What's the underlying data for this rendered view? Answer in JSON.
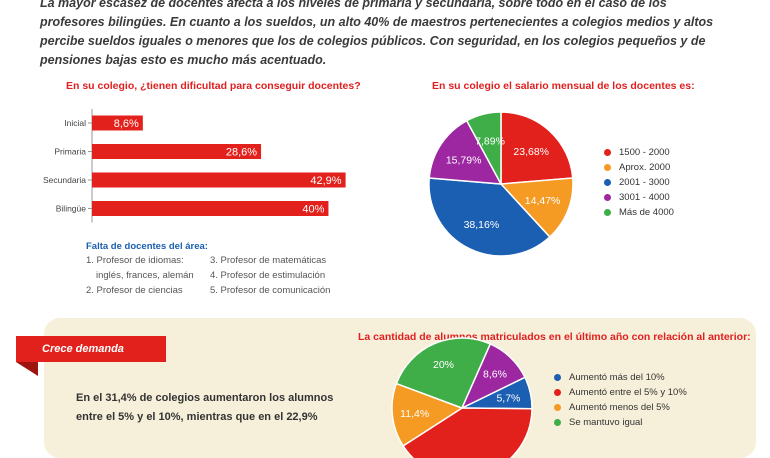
{
  "intro": {
    "text": "La mayor escasez de docentes afecta a los niveles de primaria y secundaria, sobre todo en el caso de los profesores bilingües. En cuanto a los sueldos, un alto 40% de maestros pertenecientes a colegios medios y altos percibe sueldos iguales o menores que los de colegios públicos. Con seguridad, en los colegios pequeños y de pensiones bajas esto es mucho más acentuado."
  },
  "shortage": {
    "title": "Falta de docentes del área:",
    "items": [
      "1. Profesor de idiomas:",
      "3. Profesor de matemáticas",
      "inglés, frances, alemán",
      "4. Profesor de estimulación",
      "2. Profesor de ciencias",
      "5. Profesor de comunicación"
    ]
  },
  "section2": {
    "ribbon": "Crece demanda",
    "text": "En el 31,4% de colegios aumentaron los alumnos entre el 5% y el 10%, mientras que en el 22,9%"
  },
  "chart_data": [
    {
      "type": "bar",
      "orientation": "horizontal",
      "title": "En su colegio, ¿tienen dificultad para conseguir docentes?",
      "categories": [
        "Inicial",
        "Primaria",
        "Secundaria",
        "Bilingüe"
      ],
      "values": [
        8.6,
        28.6,
        42.9,
        40
      ],
      "value_labels": [
        "8,6%",
        "28,6%",
        "42,9%",
        "40%"
      ],
      "xlim": [
        0,
        45
      ],
      "color": "#e3211c"
    },
    {
      "type": "pie",
      "title": "En su colegio el salario mensual de los docentes es:",
      "slices": [
        {
          "label": "1500 - 2000",
          "value": 23.68,
          "display": "23,68%",
          "color": "#e3211c"
        },
        {
          "label": "Aprox. 2000",
          "value": 14.47,
          "display": "14,47%",
          "color": "#f59a23"
        },
        {
          "label": "2001 - 3000",
          "value": 38.16,
          "display": "38,16%",
          "color": "#1b5fb3"
        },
        {
          "label": "3001 - 4000",
          "value": 15.79,
          "display": "15,79%",
          "color": "#9c27a0"
        },
        {
          "label": "Más de 4000",
          "value": 7.89,
          "display": "7,89%",
          "color": "#3fae49"
        }
      ],
      "legend_position": "right"
    },
    {
      "type": "pie",
      "title": "La cantidad de alumnos matriculados en el último año con relación al anterior:",
      "slices": [
        {
          "label": "Aumentó más del 10%",
          "value": 5.7,
          "display": "5,7%",
          "color": "#1b5fb3"
        },
        {
          "label": "Aumentó entre el 5% y 10%",
          "value": 31.4,
          "display": "",
          "color": "#e3211c"
        },
        {
          "label": "Aumentó menos del 5%",
          "value": 11.4,
          "display": "11,4%",
          "color": "#f59a23"
        },
        {
          "label": "Se mantuvo igual",
          "value": 20,
          "display": "20%",
          "color": "#3fae49"
        },
        {
          "label": "",
          "value": 8.6,
          "display": "8,6%",
          "color": "#9c27a0"
        }
      ],
      "legend_position": "right"
    }
  ]
}
